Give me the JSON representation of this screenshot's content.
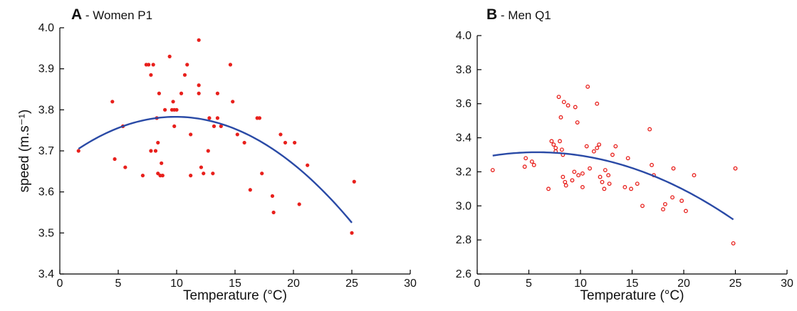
{
  "figure": {
    "background": "#ffffff",
    "point_color": "#e8201c",
    "curve_color": "#2a4aa6"
  },
  "chart_data": [
    {
      "type": "scatter",
      "panel_letter": "A",
      "title": " - Women P1",
      "xlabel": "Temperature (°C)",
      "ylabel": "speed (m.s⁻¹)",
      "xlim": [
        0,
        30
      ],
      "ylim": [
        3.4,
        4.0
      ],
      "xticks": [
        0,
        5,
        10,
        15,
        20,
        25,
        30
      ],
      "yticks": [
        3.4,
        3.5,
        3.6,
        3.7,
        3.8,
        3.9,
        4.0
      ],
      "ytick_labels": [
        "3.4",
        "3.5",
        "3.6",
        "3.7",
        "3.8",
        "3.9",
        "4.0"
      ],
      "grid": false,
      "marker": "filled",
      "fit": {
        "type": "quadratic",
        "x_range": [
          1.6,
          25
        ],
        "points": [
          [
            1.6,
            3.705
          ],
          [
            9.8,
            3.783
          ],
          [
            25,
            3.525
          ]
        ]
      },
      "points": [
        [
          1.6,
          3.7
        ],
        [
          4.5,
          3.82
        ],
        [
          4.7,
          3.68
        ],
        [
          5.4,
          3.76
        ],
        [
          5.6,
          3.66
        ],
        [
          7.1,
          3.64
        ],
        [
          7.4,
          3.91
        ],
        [
          7.6,
          3.91
        ],
        [
          7.8,
          3.885
        ],
        [
          7.8,
          3.7
        ],
        [
          8.0,
          3.91
        ],
        [
          8.2,
          3.7
        ],
        [
          8.3,
          3.78
        ],
        [
          8.4,
          3.72
        ],
        [
          8.4,
          3.645
        ],
        [
          8.5,
          3.84
        ],
        [
          8.6,
          3.64
        ],
        [
          8.7,
          3.67
        ],
        [
          8.8,
          3.64
        ],
        [
          9.0,
          3.8
        ],
        [
          9.4,
          3.93
        ],
        [
          9.6,
          3.8
        ],
        [
          9.7,
          3.82
        ],
        [
          9.8,
          3.8
        ],
        [
          9.8,
          3.76
        ],
        [
          10.0,
          3.8
        ],
        [
          10.4,
          3.84
        ],
        [
          10.7,
          3.885
        ],
        [
          10.9,
          3.91
        ],
        [
          11.2,
          3.74
        ],
        [
          11.2,
          3.64
        ],
        [
          11.9,
          3.97
        ],
        [
          11.9,
          3.84
        ],
        [
          11.9,
          3.86
        ],
        [
          12.1,
          3.66
        ],
        [
          12.3,
          3.645
        ],
        [
          12.7,
          3.7
        ],
        [
          12.8,
          3.78
        ],
        [
          13.1,
          3.645
        ],
        [
          13.2,
          3.76
        ],
        [
          13.5,
          3.84
        ],
        [
          13.5,
          3.78
        ],
        [
          13.8,
          3.76
        ],
        [
          14.6,
          3.91
        ],
        [
          14.8,
          3.82
        ],
        [
          15.2,
          3.74
        ],
        [
          15.8,
          3.72
        ],
        [
          16.3,
          3.605
        ],
        [
          16.9,
          3.78
        ],
        [
          17.1,
          3.78
        ],
        [
          17.3,
          3.645
        ],
        [
          18.2,
          3.59
        ],
        [
          18.3,
          3.55
        ],
        [
          18.9,
          3.74
        ],
        [
          19.3,
          3.72
        ],
        [
          20.1,
          3.72
        ],
        [
          20.5,
          3.57
        ],
        [
          21.2,
          3.665
        ],
        [
          25.0,
          3.5
        ],
        [
          25.2,
          3.625
        ]
      ]
    },
    {
      "type": "scatter",
      "panel_letter": "B",
      "title": " - Men Q1",
      "xlabel": "Temperature (°C)",
      "ylabel": "",
      "xlim": [
        0,
        30
      ],
      "ylim": [
        2.6,
        4.0
      ],
      "xticks": [
        0,
        5,
        10,
        15,
        20,
        25,
        30
      ],
      "yticks": [
        2.6,
        2.8,
        3.0,
        3.2,
        3.4,
        3.6,
        3.8,
        4.0
      ],
      "ytick_labels": [
        "2.6",
        "2.8",
        "3.0",
        "3.2",
        "3.4",
        "3.6",
        "3.8",
        "4.0"
      ],
      "grid": false,
      "marker": "hollow",
      "fit": {
        "type": "quadratic",
        "x_range": [
          1.5,
          24.8
        ],
        "points": [
          [
            1.5,
            3.295
          ],
          [
            6.0,
            3.315
          ],
          [
            24.8,
            2.92
          ]
        ]
      },
      "points": [
        [
          1.5,
          3.21
        ],
        [
          4.6,
          3.23
        ],
        [
          4.7,
          3.28
        ],
        [
          5.3,
          3.26
        ],
        [
          5.5,
          3.24
        ],
        [
          6.9,
          3.1
        ],
        [
          7.2,
          3.38
        ],
        [
          7.4,
          3.36
        ],
        [
          7.6,
          3.34
        ],
        [
          7.6,
          3.32
        ],
        [
          7.9,
          3.64
        ],
        [
          8.0,
          3.38
        ],
        [
          8.1,
          3.52
        ],
        [
          8.2,
          3.33
        ],
        [
          8.3,
          3.3
        ],
        [
          8.3,
          3.17
        ],
        [
          8.4,
          3.61
        ],
        [
          8.5,
          3.14
        ],
        [
          8.6,
          3.12
        ],
        [
          8.8,
          3.59
        ],
        [
          9.2,
          3.15
        ],
        [
          9.4,
          3.2
        ],
        [
          9.5,
          3.58
        ],
        [
          9.7,
          3.49
        ],
        [
          9.8,
          3.18
        ],
        [
          10.2,
          3.19
        ],
        [
          10.2,
          3.11
        ],
        [
          10.6,
          3.35
        ],
        [
          10.7,
          3.7
        ],
        [
          10.9,
          3.22
        ],
        [
          11.3,
          3.32
        ],
        [
          11.6,
          3.34
        ],
        [
          11.6,
          3.6
        ],
        [
          11.8,
          3.36
        ],
        [
          11.9,
          3.17
        ],
        [
          12.1,
          3.14
        ],
        [
          12.3,
          3.1
        ],
        [
          12.4,
          3.21
        ],
        [
          12.7,
          3.18
        ],
        [
          12.8,
          3.13
        ],
        [
          13.1,
          3.3
        ],
        [
          13.4,
          3.35
        ],
        [
          14.3,
          3.11
        ],
        [
          14.6,
          3.28
        ],
        [
          14.9,
          3.1
        ],
        [
          15.5,
          3.13
        ],
        [
          16.0,
          3.0
        ],
        [
          16.7,
          3.45
        ],
        [
          16.9,
          3.24
        ],
        [
          17.1,
          3.18
        ],
        [
          18.0,
          2.98
        ],
        [
          18.2,
          3.01
        ],
        [
          18.9,
          3.05
        ],
        [
          19.0,
          3.22
        ],
        [
          19.8,
          3.03
        ],
        [
          20.2,
          2.97
        ],
        [
          21.0,
          3.18
        ],
        [
          24.8,
          2.78
        ],
        [
          25.0,
          3.22
        ]
      ]
    }
  ]
}
